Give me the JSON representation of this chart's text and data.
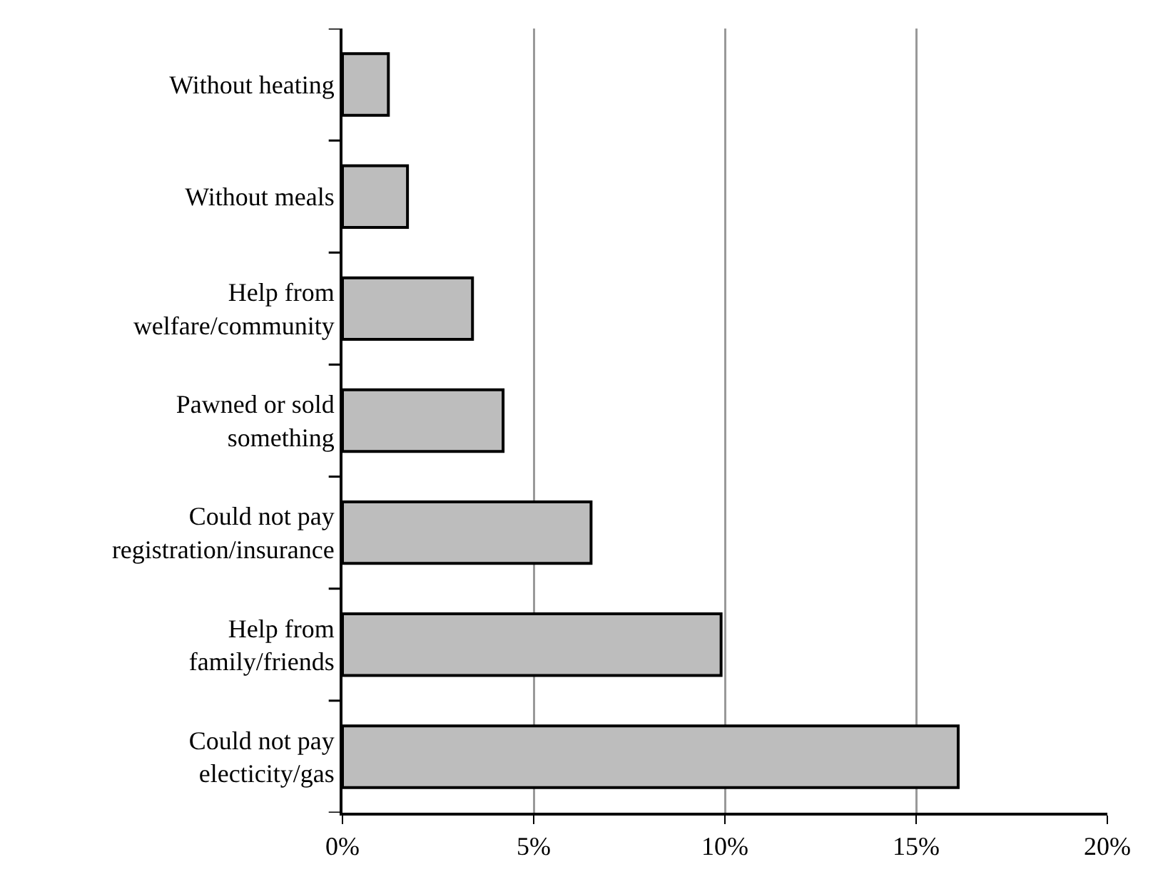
{
  "chart_data": {
    "type": "bar",
    "orientation": "horizontal",
    "categories": [
      "Without heating",
      "Without meals",
      "Help from welfare/community",
      "Pawned or sold something",
      "Could not pay registration/insurance",
      "Help from family/friends",
      "Could not pay electicity/gas"
    ],
    "values": [
      1.2,
      1.7,
      3.4,
      4.2,
      6.5,
      9.9,
      16.1
    ],
    "color": "#bdbdbd",
    "xlim": [
      0,
      20
    ],
    "xticks": [
      {
        "value": 0,
        "label": "0%"
      },
      {
        "value": 5,
        "label": "5%"
      },
      {
        "value": 10,
        "label": "10%"
      },
      {
        "value": 15,
        "label": "15%"
      },
      {
        "value": 20,
        "label": "20%"
      }
    ],
    "grid": "x"
  }
}
